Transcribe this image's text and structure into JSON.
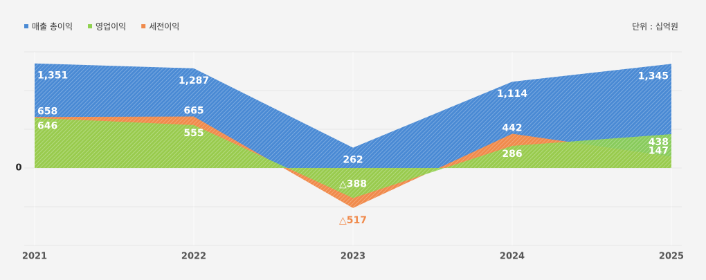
{
  "chart_data": {
    "type": "area",
    "unit": "단위 : 십억원",
    "categories": [
      "2021",
      "2022",
      "2023",
      "2024",
      "2025"
    ],
    "ylim": [
      -1000,
      1500
    ],
    "yticks": [
      0
    ],
    "series": [
      {
        "name": "매출 총이익",
        "color": "#4a8ad4",
        "values": [
          1351,
          1287,
          262,
          1114,
          1345
        ],
        "value_labels": [
          "1,351",
          "1,287",
          "262",
          "1,114",
          "1,345"
        ]
      },
      {
        "name": "세전이익",
        "color": "#f08a4b",
        "values": [
          658,
          665,
          -517,
          442,
          147
        ],
        "value_labels": [
          "658",
          "665",
          "△517",
          "442",
          "147"
        ]
      },
      {
        "name": "영업이익",
        "color": "#8fd14f",
        "values": [
          646,
          555,
          -388,
          286,
          438
        ],
        "value_labels": [
          "646",
          "555",
          "△388",
          "286",
          "438"
        ]
      }
    ]
  }
}
